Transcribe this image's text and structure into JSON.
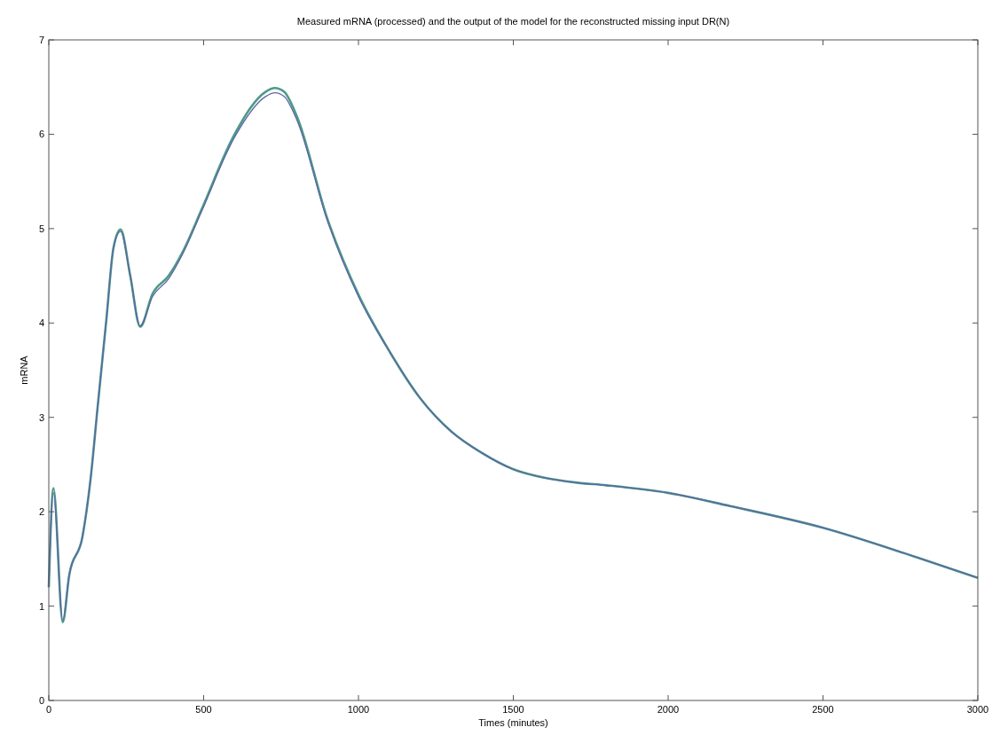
{
  "chart_data": {
    "type": "line",
    "title": "Measured mRNA (processed) and the output of the model for the reconstructed missing input DR(N)",
    "xlabel": "Times (minutes)",
    "ylabel": "mRNA",
    "xlim": [
      0,
      3000
    ],
    "xticks": [
      0,
      500,
      1000,
      1500,
      2000,
      2500,
      3000
    ],
    "ylim": [
      0,
      7
    ],
    "yticks": [
      0,
      1,
      2,
      3,
      4,
      5,
      6,
      7
    ],
    "grid": false,
    "line_style": "solid",
    "series": [
      {
        "color": "#4f9a86",
        "x": [
          0,
          15,
          45,
          66,
          109,
          135,
          158,
          186,
          209,
          232,
          263,
          295,
          335,
          387,
          435,
          493,
          600,
          700,
          730,
          760,
          800,
          900,
          1000,
          1100,
          1200,
          1300,
          1400,
          1500,
          1600,
          1700,
          1800,
          2000,
          2200,
          2500,
          2800,
          3000
        ],
        "values": [
          1.2,
          2.25,
          0.83,
          1.33,
          1.74,
          2.35,
          3.12,
          4.04,
          4.8,
          4.99,
          4.5,
          3.96,
          4.31,
          4.5,
          4.77,
          5.2,
          6.0,
          6.45,
          6.49,
          6.45,
          6.2,
          5.1,
          4.3,
          3.7,
          3.2,
          2.85,
          2.62,
          2.45,
          2.36,
          2.31,
          2.28,
          2.2,
          2.06,
          1.83,
          1.52,
          1.3
        ]
      },
      {
        "color": "#5b66a8",
        "x": [
          0,
          15,
          45,
          66,
          109,
          135,
          158,
          186,
          209,
          232,
          263,
          295,
          335,
          387,
          435,
          493,
          600,
          700,
          730,
          760,
          800,
          900,
          1000,
          1100,
          1200,
          1300,
          1400,
          1500,
          1600,
          1700,
          1800,
          2000,
          2200,
          2500,
          2800,
          3000
        ],
        "values": [
          1.2,
          2.2,
          0.85,
          1.33,
          1.74,
          2.35,
          3.12,
          4.04,
          4.8,
          4.97,
          4.5,
          3.97,
          4.28,
          4.47,
          4.75,
          5.18,
          5.97,
          6.4,
          6.44,
          6.4,
          6.16,
          5.08,
          4.28,
          3.7,
          3.2,
          2.85,
          2.62,
          2.45,
          2.36,
          2.31,
          2.28,
          2.2,
          2.06,
          1.83,
          1.52,
          1.3
        ]
      }
    ]
  }
}
